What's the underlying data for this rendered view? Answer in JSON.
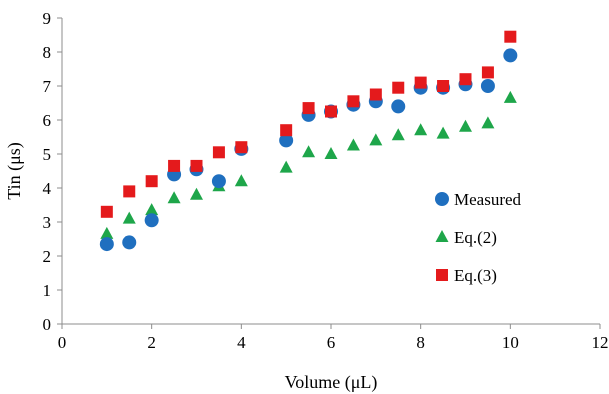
{
  "chart_data": {
    "type": "scatter",
    "title": "",
    "xlabel": "Volume (μL)",
    "ylabel": "Tin (μs)",
    "xlim": [
      0,
      12
    ],
    "ylim": [
      0,
      9
    ],
    "xticks": [
      "0",
      "2",
      "4",
      "6",
      "8",
      "10",
      "12"
    ],
    "yticks": [
      "0",
      "1",
      "2",
      "3",
      "4",
      "5",
      "6",
      "7",
      "8",
      "9"
    ],
    "grid": false,
    "legend_position": "right",
    "series": [
      {
        "name": "Measured",
        "marker": "circle",
        "color": "#1f6fbf",
        "x": [
          1,
          1.5,
          2,
          2.5,
          3,
          3.5,
          4,
          5,
          5.5,
          6,
          6.5,
          7,
          7.5,
          8,
          8.5,
          9,
          9.5,
          10
        ],
        "y": [
          2.35,
          2.4,
          3.05,
          4.4,
          4.55,
          4.2,
          5.15,
          5.4,
          6.15,
          6.25,
          6.45,
          6.55,
          6.4,
          6.95,
          6.95,
          7.05,
          7.0,
          7.9
        ]
      },
      {
        "name": "Eq.(2)",
        "marker": "triangle",
        "color": "#1ea64a",
        "x": [
          1,
          1.5,
          2,
          2.5,
          3,
          3.5,
          4,
          5,
          5.5,
          6,
          6.5,
          7,
          7.5,
          8,
          8.5,
          9,
          9.5,
          10
        ],
        "y": [
          2.65,
          3.1,
          3.35,
          3.7,
          3.8,
          4.05,
          4.2,
          4.6,
          5.05,
          5.0,
          5.25,
          5.4,
          5.55,
          5.7,
          5.6,
          5.8,
          5.9,
          6.65
        ]
      },
      {
        "name": "Eq.(3)",
        "marker": "square",
        "color": "#e41a1c",
        "x": [
          1,
          1.5,
          2,
          2.5,
          3,
          3.5,
          4,
          5,
          5.5,
          6,
          6.5,
          7,
          7.5,
          8,
          8.5,
          9,
          9.5,
          10
        ],
        "y": [
          3.3,
          3.9,
          4.2,
          4.65,
          4.65,
          5.05,
          5.2,
          5.7,
          6.35,
          6.25,
          6.55,
          6.75,
          6.95,
          7.1,
          7.0,
          7.2,
          7.4,
          8.45
        ]
      }
    ]
  }
}
